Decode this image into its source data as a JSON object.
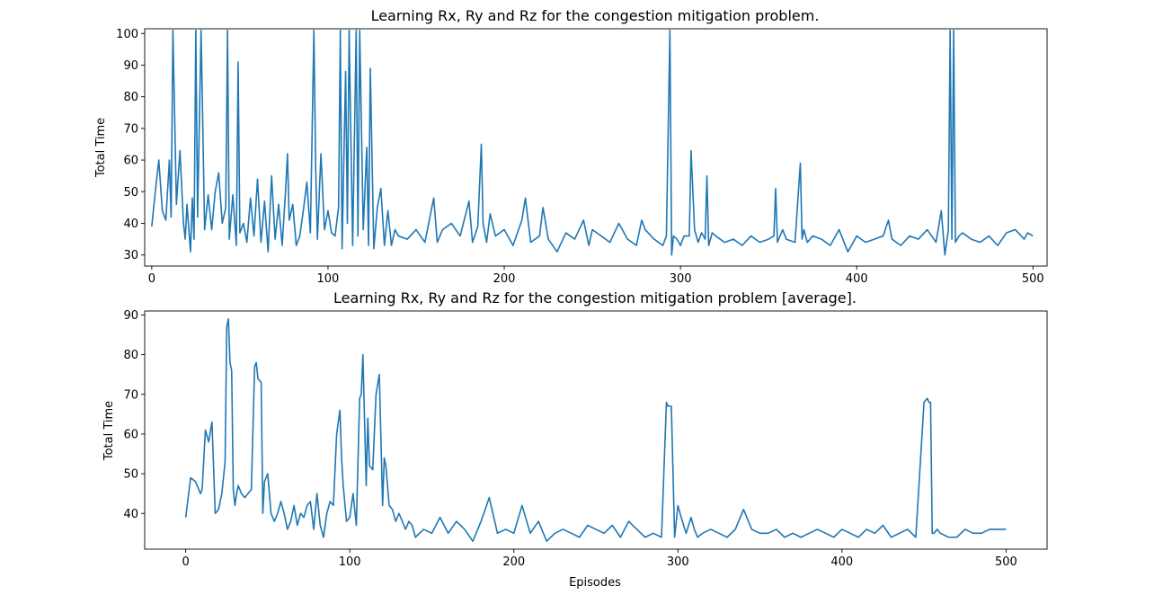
{
  "chart_data": [
    {
      "type": "line",
      "title": "Learning Rx, Ry and Rz for the congestion mitigation problem.",
      "xlabel": "",
      "ylabel": "Total Time",
      "xlim": [
        -4,
        508
      ],
      "ylim": [
        26.5,
        101.5
      ],
      "xticks": [
        0,
        100,
        200,
        300,
        400,
        500
      ],
      "yticks": [
        30,
        40,
        50,
        60,
        70,
        80,
        90,
        100
      ],
      "grid": false,
      "color": "#1f77b4",
      "series": [
        {
          "x": [
            0,
            2,
            4,
            6,
            8,
            10,
            11,
            12,
            14,
            16,
            18,
            19,
            20,
            22,
            23,
            24,
            25,
            26,
            28,
            30,
            32,
            34,
            36,
            38,
            40,
            42,
            43,
            44,
            46,
            48,
            49,
            50,
            52,
            54,
            56,
            58,
            60,
            62,
            64,
            66,
            68,
            70,
            72,
            74,
            76,
            77,
            78,
            80,
            82,
            84,
            86,
            88,
            90,
            92,
            93,
            94,
            96,
            98,
            100,
            102,
            104,
            106,
            107,
            108,
            110,
            111,
            112,
            114,
            116,
            117,
            118,
            120,
            122,
            123,
            124,
            126,
            128,
            130,
            132,
            134,
            136,
            138,
            140,
            145,
            150,
            155,
            160,
            162,
            165,
            170,
            175,
            180,
            182,
            185,
            187,
            188,
            190,
            192,
            195,
            200,
            205,
            210,
            212,
            215,
            220,
            222,
            225,
            230,
            235,
            240,
            245,
            248,
            250,
            255,
            260,
            265,
            270,
            275,
            278,
            280,
            285,
            290,
            292,
            294,
            295,
            296,
            298,
            300,
            302,
            305,
            306,
            308,
            310,
            312,
            314,
            315,
            316,
            318,
            320,
            325,
            330,
            335,
            340,
            345,
            350,
            353,
            354,
            355,
            358,
            360,
            365,
            368,
            369,
            370,
            372,
            375,
            380,
            385,
            390,
            395,
            400,
            405,
            410,
            415,
            418,
            420,
            425,
            430,
            435,
            440,
            445,
            448,
            450,
            452,
            453,
            454,
            455,
            456,
            458,
            460,
            465,
            470,
            475,
            480,
            485,
            490,
            495,
            497,
            500
          ],
          "y": [
            39,
            50,
            60,
            44,
            41,
            60,
            42,
            101,
            46,
            63,
            40,
            35,
            46,
            31,
            48,
            35,
            101,
            42,
            101,
            38,
            49,
            38,
            50,
            56,
            40,
            45,
            101,
            35,
            49,
            33,
            91,
            37,
            40,
            34,
            48,
            36,
            54,
            34,
            47,
            31,
            55,
            35,
            46,
            33,
            51,
            62,
            41,
            46,
            33,
            36,
            44,
            53,
            37,
            101,
            58,
            35,
            62,
            38,
            44,
            37,
            36,
            45,
            101,
            32,
            88,
            40,
            101,
            33,
            101,
            36,
            101,
            38,
            64,
            33,
            89,
            32,
            45,
            51,
            33,
            44,
            33,
            38,
            36,
            35,
            38,
            34,
            48,
            34,
            38,
            40,
            36,
            47,
            34,
            39,
            65,
            40,
            34,
            43,
            36,
            38,
            33,
            41,
            48,
            34,
            36,
            45,
            35,
            31,
            37,
            35,
            41,
            33,
            38,
            36,
            34,
            40,
            35,
            33,
            41,
            38,
            35,
            33,
            36,
            101,
            30,
            36,
            35,
            33,
            36,
            36,
            63,
            38,
            34,
            37,
            35,
            55,
            33,
            37,
            36,
            34,
            35,
            33,
            36,
            34,
            35,
            36,
            51,
            34,
            38,
            35,
            34,
            59,
            35,
            38,
            34,
            36,
            35,
            33,
            38,
            31,
            36,
            34,
            35,
            36,
            41,
            35,
            33,
            36,
            35,
            38,
            34,
            44,
            30,
            38,
            101,
            35,
            101,
            34,
            36,
            37,
            35,
            34,
            36,
            33,
            37,
            38,
            35,
            37,
            36
          ]
        }
      ]
    },
    {
      "type": "line",
      "title": "Learning Rx, Ry and Rz for the congestion mitigation problem [average].",
      "xlabel": "Episodes",
      "ylabel": "Total Time",
      "xlim": [
        -25,
        525
      ],
      "ylim": [
        31,
        91
      ],
      "xticks": [
        0,
        100,
        200,
        300,
        400,
        500
      ],
      "yticks": [
        40,
        50,
        60,
        70,
        80,
        90
      ],
      "grid": false,
      "color": "#1f77b4",
      "series": [
        {
          "x": [
            0,
            3,
            6,
            9,
            10,
            12,
            14,
            16,
            18,
            20,
            22,
            24,
            25,
            26,
            27,
            28,
            29,
            30,
            31,
            32,
            34,
            36,
            38,
            40,
            42,
            43,
            44,
            46,
            47,
            48,
            50,
            52,
            54,
            56,
            58,
            60,
            62,
            64,
            66,
            68,
            70,
            72,
            74,
            76,
            78,
            80,
            82,
            84,
            86,
            88,
            90,
            92,
            94,
            95,
            96,
            98,
            100,
            102,
            104,
            106,
            107,
            108,
            110,
            111,
            112,
            114,
            116,
            118,
            120,
            121,
            122,
            124,
            126,
            128,
            130,
            132,
            134,
            136,
            138,
            140,
            145,
            150,
            155,
            160,
            165,
            170,
            175,
            180,
            185,
            190,
            195,
            200,
            205,
            210,
            215,
            220,
            225,
            230,
            235,
            240,
            245,
            250,
            255,
            260,
            265,
            270,
            275,
            280,
            285,
            290,
            293,
            294,
            295,
            296,
            298,
            300,
            302,
            305,
            308,
            310,
            312,
            315,
            320,
            325,
            330,
            335,
            340,
            345,
            350,
            355,
            360,
            365,
            370,
            375,
            380,
            385,
            390,
            395,
            400,
            405,
            410,
            415,
            420,
            425,
            430,
            435,
            440,
            445,
            450,
            452,
            453,
            454,
            455,
            456,
            458,
            460,
            465,
            470,
            475,
            480,
            485,
            490,
            495,
            500
          ],
          "y": [
            39,
            49,
            48,
            45,
            46,
            61,
            58,
            63,
            40,
            41,
            45,
            53,
            87,
            89,
            78,
            76,
            46,
            42,
            45,
            47,
            45,
            44,
            45,
            46,
            77,
            78,
            74,
            73,
            40,
            48,
            50,
            40,
            38,
            40,
            43,
            40,
            36,
            38,
            42,
            37,
            40,
            39,
            42,
            43,
            36,
            45,
            37,
            34,
            40,
            43,
            42,
            60,
            66,
            54,
            47,
            38,
            39,
            45,
            37,
            69,
            70,
            80,
            47,
            64,
            52,
            51,
            70,
            75,
            42,
            54,
            52,
            42,
            41,
            38,
            40,
            38,
            36,
            38,
            37,
            34,
            36,
            35,
            39,
            35,
            38,
            36,
            33,
            38,
            44,
            35,
            36,
            35,
            42,
            35,
            38,
            33,
            35,
            36,
            35,
            34,
            37,
            36,
            35,
            37,
            34,
            38,
            36,
            34,
            35,
            34,
            68,
            67,
            67,
            67,
            34,
            42,
            39,
            35,
            39,
            36,
            34,
            35,
            36,
            35,
            34,
            36,
            41,
            36,
            35,
            35,
            36,
            34,
            35,
            34,
            35,
            36,
            35,
            34,
            36,
            35,
            34,
            36,
            35,
            37,
            34,
            35,
            36,
            34,
            68,
            69,
            68,
            68,
            35,
            35,
            36,
            35,
            34,
            34,
            36,
            35,
            35,
            36,
            36,
            36
          ]
        }
      ]
    }
  ]
}
